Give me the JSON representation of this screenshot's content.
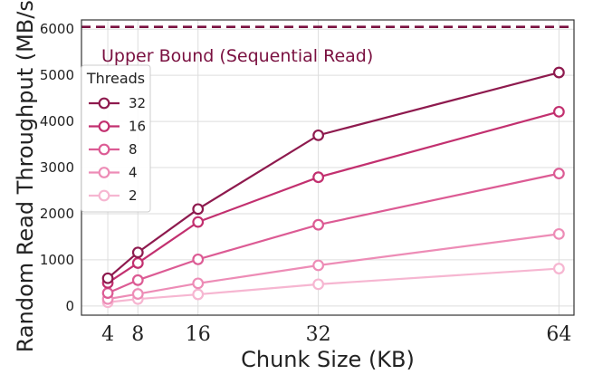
{
  "chart_data": {
    "type": "line",
    "title": "",
    "xlabel": "Chunk Size (KB)",
    "ylabel": "Random Read Throughput (MB/s)",
    "x": [
      4,
      8,
      16,
      32,
      64
    ],
    "x_tick_labels": [
      "4",
      "8",
      "16",
      "32",
      "64"
    ],
    "xlim": [
      0.5,
      66
    ],
    "ylim": [
      -200,
      6200
    ],
    "y_ticks": [
      0,
      1000,
      2000,
      3000,
      4000,
      5000,
      6000
    ],
    "y_tick_labels": [
      "0",
      "1000",
      "2000",
      "3000",
      "4000",
      "5000",
      "6000"
    ],
    "grid": true,
    "legend": {
      "title": "Threads",
      "position": "upper-left"
    },
    "series": [
      {
        "name": "32",
        "values": [
          600,
          1160,
          2100,
          3700,
          5060
        ],
        "color": "#8e1a4e"
      },
      {
        "name": "16",
        "values": [
          500,
          930,
          1820,
          2790,
          4210
        ],
        "color": "#c2306f"
      },
      {
        "name": "8",
        "values": [
          280,
          560,
          1010,
          1760,
          2870
        ],
        "color": "#dc5b94"
      },
      {
        "name": "4",
        "values": [
          150,
          260,
          490,
          880,
          1560
        ],
        "color": "#ed8cb6"
      },
      {
        "name": "2",
        "values": [
          80,
          150,
          250,
          470,
          810
        ],
        "color": "#f6b6d1"
      }
    ],
    "reference_line": {
      "value": 6050,
      "label": "Upper Bound (Sequential Read)",
      "color": "#7a1040",
      "style": "dashed"
    }
  }
}
